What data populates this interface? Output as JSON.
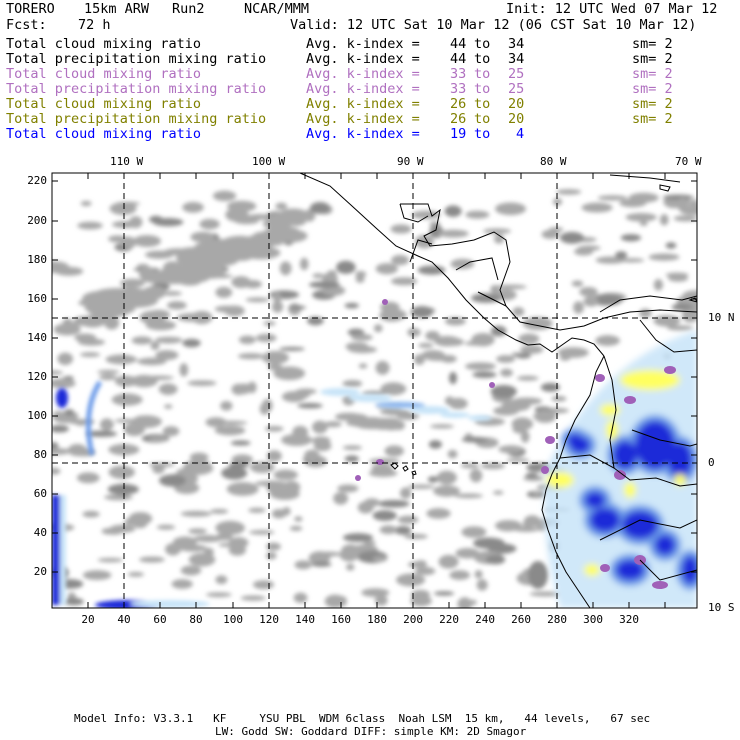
{
  "header": {
    "model": "TORERO",
    "grid": "15km ARW",
    "run": "Run2",
    "org": "NCAR/MMM",
    "init": "Init: 12 UTC Wed 07 Mar 12",
    "fcst_label": "Fcst:",
    "fcst_value": "72 h",
    "valid": "Valid: 12 UTC Sat 10 Mar 12 (06 CST Sat 10 Mar 12)"
  },
  "legend": [
    {
      "field": "Total cloud mixing ratio",
      "kindex": "Avg. k-index =",
      "from": "44",
      "to_word": "to",
      "to": "34",
      "sm": "sm= 2",
      "color": "#000000"
    },
    {
      "field": "Total precipitation mixing ratio",
      "kindex": "Avg. k-index =",
      "from": "44",
      "to_word": "to",
      "to": "34",
      "sm": "sm= 2",
      "color": "#000000"
    },
    {
      "field": "Total cloud mixing ratio",
      "kindex": "Avg. k-index =",
      "from": "33",
      "to_word": "to",
      "to": "25",
      "sm": "sm= 2",
      "color": "#b070c0"
    },
    {
      "field": "Total precipitation mixing ratio",
      "kindex": "Avg. k-index =",
      "from": "33",
      "to_word": "to",
      "to": "25",
      "sm": "sm= 2",
      "color": "#b070c0"
    },
    {
      "field": "Total cloud mixing ratio",
      "kindex": "Avg. k-index =",
      "from": "26",
      "to_word": "to",
      "to": "20",
      "sm": "sm= 2",
      "color": "#808000"
    },
    {
      "field": "Total precipitation mixing ratio",
      "kindex": "Avg. k-index =",
      "from": "26",
      "to_word": "to",
      "to": "20",
      "sm": "sm= 2",
      "color": "#808000"
    },
    {
      "field": "Total cloud mixing ratio",
      "kindex": "Avg. k-index =",
      "from": "19",
      "to_word": "to",
      "to": "4",
      "sm": "",
      "color": "#0000ff"
    }
  ],
  "map": {
    "lon_labels": [
      "110 W",
      "100 W",
      "90 W",
      "80 W",
      "70 W"
    ],
    "lat_labels": [
      "10 N",
      "0",
      "10 S"
    ],
    "x_ticks": [
      "20",
      "40",
      "60",
      "80",
      "100",
      "120",
      "140",
      "160",
      "180",
      "200",
      "220",
      "240",
      "260",
      "280",
      "300",
      "320"
    ],
    "y_ticks": [
      "220",
      "200",
      "180",
      "160",
      "140",
      "120",
      "100",
      "80",
      "60",
      "40",
      "20"
    ],
    "colors": {
      "cloud": "#a8a8a8",
      "cloud_dark": "#8a8a8a",
      "precip_light": "#c8e4f8",
      "precip_mid": "#6a9ae8",
      "precip_heavy": "#1a2ad8",
      "magenta": "#a060b8",
      "yellow": "#ffff60",
      "coast": "#000000"
    }
  },
  "footer": {
    "line1": "Model Info: V3.3.1   KF     YSU PBL  WDM 6class  Noah LSM  15 km,   44 levels,   67 sec",
    "line2": "LW: Godd SW: Goddard DIFF: simple KM: 2D Smagor"
  }
}
